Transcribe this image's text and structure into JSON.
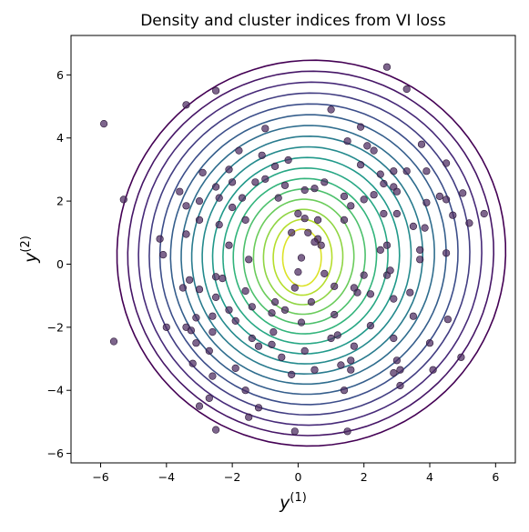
{
  "chart_data": {
    "type": "scatter",
    "title": "Density and cluster indices from VI loss",
    "xlabel": {
      "base": "y",
      "sup": "(1)"
    },
    "ylabel": {
      "base": "y",
      "sup": "(2)"
    },
    "xlim": [
      -6.9,
      6.6
    ],
    "ylim": [
      -6.3,
      7.25
    ],
    "xticks": [
      -6,
      -4,
      -2,
      0,
      2,
      4,
      6
    ],
    "yticks": [
      -6,
      -4,
      -2,
      0,
      2,
      4,
      6
    ],
    "xtick_labels": [
      "−6",
      "−4",
      "−2",
      "0",
      "2",
      "4",
      "6"
    ],
    "ytick_labels": [
      "−6",
      "−4",
      "−2",
      "0",
      "2",
      "4",
      "6"
    ],
    "grid": false,
    "contours": {
      "center": [
        0.1,
        0.2
      ],
      "levels": 17,
      "colormap": "viridis"
    },
    "points_color": "#4b2a5f",
    "points": [
      [
        -5.9,
        4.45
      ],
      [
        -5.3,
        2.05
      ],
      [
        -5.6,
        -2.45
      ],
      [
        -4.2,
        0.8
      ],
      [
        -4.1,
        0.3
      ],
      [
        -4.0,
        -2.0
      ],
      [
        -3.6,
        2.3
      ],
      [
        -3.4,
        5.05
      ],
      [
        -3.4,
        1.85
      ],
      [
        -3.4,
        0.95
      ],
      [
        -3.3,
        -0.5
      ],
      [
        -3.0,
        2.0
      ],
      [
        -3.0,
        1.4
      ],
      [
        -3.0,
        -0.8
      ],
      [
        -3.1,
        -1.7
      ],
      [
        -3.1,
        -2.5
      ],
      [
        -3.5,
        -0.75
      ],
      [
        -3.4,
        -2.0
      ],
      [
        -3.25,
        -2.1
      ],
      [
        -3.2,
        -3.15
      ],
      [
        -2.9,
        2.9
      ],
      [
        -2.5,
        5.5
      ],
      [
        -2.5,
        2.45
      ],
      [
        -2.4,
        2.1
      ],
      [
        -2.4,
        1.25
      ],
      [
        -2.5,
        -0.4
      ],
      [
        -2.5,
        -1.05
      ],
      [
        -2.6,
        -1.65
      ],
      [
        -2.6,
        -2.15
      ],
      [
        -2.7,
        -2.75
      ],
      [
        -2.6,
        -3.55
      ],
      [
        -2.7,
        -4.25
      ],
      [
        -3.0,
        -4.5
      ],
      [
        -2.5,
        -5.25
      ],
      [
        -2.1,
        3.0
      ],
      [
        -2.0,
        2.6
      ],
      [
        -2.0,
        1.8
      ],
      [
        -2.1,
        0.6
      ],
      [
        -2.3,
        -0.45
      ],
      [
        -2.1,
        -1.45
      ],
      [
        -1.9,
        -1.8
      ],
      [
        -1.9,
        -3.3
      ],
      [
        -1.6,
        -4.0
      ],
      [
        -1.5,
        -4.85
      ],
      [
        -1.8,
        3.6
      ],
      [
        -1.7,
        2.1
      ],
      [
        -1.6,
        1.4
      ],
      [
        -1.5,
        0.15
      ],
      [
        -1.6,
        -0.85
      ],
      [
        -1.4,
        -1.35
      ],
      [
        -1.4,
        -2.35
      ],
      [
        -1.0,
        4.3
      ],
      [
        -1.1,
        3.45
      ],
      [
        -1.3,
        2.6
      ],
      [
        -1.2,
        -2.6
      ],
      [
        -1.2,
        -4.55
      ],
      [
        -1.0,
        2.7
      ],
      [
        -0.7,
        3.1
      ],
      [
        -0.6,
        2.1
      ],
      [
        -0.7,
        -1.2
      ],
      [
        -0.8,
        -1.55
      ],
      [
        -0.8,
        -2.55
      ],
      [
        -0.5,
        -2.95
      ],
      [
        -0.3,
        3.3
      ],
      [
        -0.4,
        2.5
      ],
      [
        -0.2,
        1.0
      ],
      [
        -0.4,
        -1.45
      ],
      [
        -0.2,
        -3.5
      ],
      [
        -0.1,
        -5.3
      ],
      [
        0.0,
        1.6
      ],
      [
        0.2,
        2.35
      ],
      [
        0.2,
        1.45
      ],
      [
        0.3,
        1.0
      ],
      [
        0.1,
        0.2
      ],
      [
        0.0,
        -0.25
      ],
      [
        -0.1,
        -0.75
      ],
      [
        0.1,
        -1.85
      ],
      [
        0.2,
        -2.75
      ],
      [
        0.5,
        2.4
      ],
      [
        0.6,
        1.4
      ],
      [
        0.6,
        0.8
      ],
      [
        0.5,
        0.7
      ],
      [
        0.7,
        0.6
      ],
      [
        0.8,
        -0.3
      ],
      [
        0.4,
        -1.2
      ],
      [
        0.5,
        -3.35
      ],
      [
        1.0,
        4.9
      ],
      [
        0.8,
        2.6
      ],
      [
        1.1,
        -0.7
      ],
      [
        1.1,
        -1.6
      ],
      [
        1.0,
        -2.35
      ],
      [
        1.3,
        -3.2
      ],
      [
        1.4,
        -4.0
      ],
      [
        1.5,
        -5.3
      ],
      [
        1.5,
        3.9
      ],
      [
        1.4,
        2.15
      ],
      [
        1.4,
        1.4
      ],
      [
        1.6,
        1.85
      ],
      [
        1.8,
        -0.9
      ],
      [
        1.7,
        -2.6
      ],
      [
        1.6,
        -3.05
      ],
      [
        1.6,
        -3.35
      ],
      [
        1.9,
        4.35
      ],
      [
        1.9,
        3.15
      ],
      [
        2.1,
        3.75
      ],
      [
        2.0,
        2.05
      ],
      [
        2.0,
        -0.35
      ],
      [
        2.2,
        -1.95
      ],
      [
        2.3,
        3.6
      ],
      [
        2.3,
        2.2
      ],
      [
        2.2,
        -0.95
      ],
      [
        2.5,
        2.85
      ],
      [
        2.5,
        0.45
      ],
      [
        2.7,
        6.25
      ],
      [
        2.6,
        2.55
      ],
      [
        2.6,
        1.6
      ],
      [
        2.7,
        0.6
      ],
      [
        2.7,
        -0.35
      ],
      [
        2.9,
        2.95
      ],
      [
        2.9,
        2.45
      ],
      [
        3.0,
        2.3
      ],
      [
        3.0,
        1.6
      ],
      [
        2.9,
        -1.1
      ],
      [
        2.9,
        -2.35
      ],
      [
        3.0,
        -3.05
      ],
      [
        2.9,
        -3.45
      ],
      [
        3.1,
        -3.35
      ],
      [
        3.1,
        -3.85
      ],
      [
        3.3,
        5.55
      ],
      [
        3.3,
        2.95
      ],
      [
        3.5,
        1.2
      ],
      [
        3.7,
        0.45
      ],
      [
        3.85,
        1.15
      ],
      [
        3.7,
        0.15
      ],
      [
        3.75,
        3.8
      ],
      [
        3.9,
        2.95
      ],
      [
        3.9,
        1.95
      ],
      [
        4.0,
        -2.5
      ],
      [
        4.1,
        -3.35
      ],
      [
        4.3,
        2.15
      ],
      [
        4.5,
        3.2
      ],
      [
        4.5,
        2.05
      ],
      [
        4.5,
        0.35
      ],
      [
        4.55,
        -1.75
      ],
      [
        4.7,
        1.55
      ],
      [
        5.0,
        2.25
      ],
      [
        5.2,
        1.3
      ],
      [
        4.95,
        -2.95
      ],
      [
        5.65,
        1.6
      ],
      [
        3.5,
        -1.65
      ],
      [
        3.4,
        -0.9
      ],
      [
        2.8,
        -0.2
      ],
      [
        1.7,
        -0.75
      ],
      [
        -0.75,
        -2.15
      ],
      [
        1.2,
        -2.25
      ]
    ]
  }
}
